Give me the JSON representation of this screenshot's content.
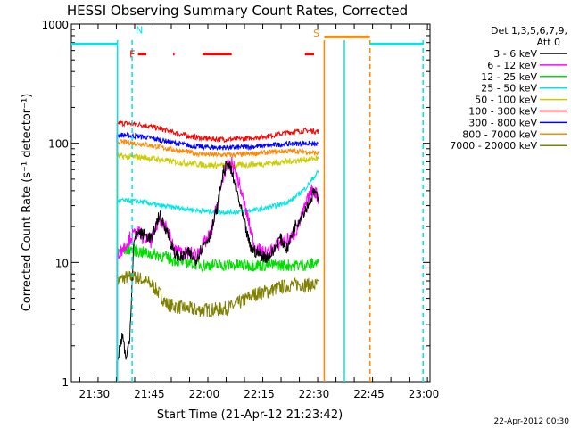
{
  "chart_data": {
    "type": "line",
    "title": "HESSI Observing Summary Count Rates, Corrected",
    "xlabel": "Start Time (21-Apr-12 21:23:42)",
    "ylabel": "Corrected Count Rate (s⁻¹ detector⁻¹)",
    "x_unit": "minutes after 21:23:42",
    "xlim": [
      0,
      98
    ],
    "ylim": [
      1,
      1000
    ],
    "yscale": "log",
    "x_tick_labels": [
      {
        "label": "21:30",
        "x": 6.3
      },
      {
        "label": "21:45",
        "x": 21.3
      },
      {
        "label": "22:00",
        "x": 36.3
      },
      {
        "label": "22:15",
        "x": 51.3
      },
      {
        "label": "22:30",
        "x": 66.3
      },
      {
        "label": "22:45",
        "x": 81.3
      },
      {
        "label": "23:00",
        "x": 96.3
      }
    ],
    "y_tick_labels": [
      {
        "label": "1",
        "y": 1
      },
      {
        "label": "10",
        "y": 10
      },
      {
        "label": "100",
        "y": 100
      },
      {
        "label": "1000",
        "y": 1000
      }
    ],
    "legend": {
      "placement": "right",
      "title_line1": "Det 1,3,5,6,7,9,",
      "title_line2": "Att 0",
      "entries": [
        {
          "name": "3 - 6 keV",
          "color": "#000000"
        },
        {
          "name": "6 - 12 keV",
          "color": "#ff00ff"
        },
        {
          "name": "12 - 25 keV",
          "color": "#00dd00"
        },
        {
          "name": "25 - 50 keV",
          "color": "#00e5e5"
        },
        {
          "name": "50 - 100 keV",
          "color": "#cccc00"
        },
        {
          "name": "100 - 300 keV",
          "color": "#ff0000"
        },
        {
          "name": "300 - 800 keV",
          "color": "#0000ff"
        },
        {
          "name": "800 - 7000 keV",
          "color": "#ff8800"
        },
        {
          "name": "7000 - 20000 keV",
          "color": "#808000"
        }
      ]
    },
    "series": [
      {
        "name": "3 - 6 keV",
        "color": "#000000",
        "x": [
          12.5,
          14.0,
          15.0,
          16.0,
          17.0,
          18.0,
          20,
          22,
          24,
          26,
          28,
          30,
          32,
          34,
          36,
          38,
          40,
          41.5,
          43,
          45,
          47,
          49,
          51,
          53,
          55,
          57,
          59,
          61,
          63,
          65,
          66.5,
          67.5
        ],
        "y": [
          1.5,
          2.5,
          1.5,
          2.5,
          14,
          18,
          17,
          16,
          25,
          19,
          12,
          11,
          12,
          10.5,
          14,
          17,
          30,
          58,
          68,
          42,
          23,
          13,
          12,
          11,
          12,
          16,
          13,
          20,
          25,
          32,
          40,
          32
        ]
      },
      {
        "name": "6 - 12 keV",
        "color": "#ff00ff",
        "x": [
          12.5,
          14,
          16,
          18,
          20,
          22,
          24,
          26,
          28,
          30,
          32,
          34,
          36,
          38,
          40,
          42,
          44,
          46,
          48,
          50,
          52,
          54,
          56,
          58,
          60,
          62,
          64,
          66,
          67.5
        ],
        "y": [
          12,
          13,
          16,
          18,
          16,
          15,
          24,
          20,
          13,
          12,
          12,
          11.5,
          14,
          17,
          32,
          60,
          68,
          44,
          25,
          14,
          12,
          12,
          14,
          15,
          16,
          20,
          30,
          42,
          35
        ]
      },
      {
        "name": "12 - 25 keV",
        "color": "#00dd00",
        "x": [
          12.5,
          16,
          20,
          24,
          28,
          32,
          36,
          40,
          44,
          48,
          52,
          56,
          60,
          64,
          67.5
        ],
        "y": [
          12.5,
          13,
          12,
          11.5,
          10.5,
          10,
          9.5,
          9.5,
          9.5,
          9.5,
          9.5,
          9.5,
          9.5,
          9.5,
          10
        ]
      },
      {
        "name": "25 - 50 keV",
        "color": "#00e5e5",
        "x": [
          12.5,
          16,
          20,
          24,
          28,
          32,
          36,
          40,
          44,
          48,
          52,
          56,
          60,
          64,
          67.5
        ],
        "y": [
          33,
          33,
          32,
          30,
          29,
          28,
          27,
          26.5,
          26.5,
          27,
          28,
          30,
          33,
          42,
          58
        ]
      },
      {
        "name": "50 - 100 keV",
        "color": "#cccc00",
        "x": [
          12.5,
          16,
          20,
          24,
          28,
          32,
          36,
          40,
          44,
          48,
          52,
          56,
          60,
          64,
          67.5
        ],
        "y": [
          78,
          77,
          76,
          73,
          70,
          68,
          66,
          65,
          65,
          66,
          67,
          69,
          71,
          73,
          75
        ]
      },
      {
        "name": "100 - 300 keV",
        "color": "#ff0000",
        "x": [
          12.5,
          16,
          20,
          24,
          28,
          32,
          36,
          40,
          44,
          48,
          52,
          56,
          60,
          64,
          67.5
        ],
        "y": [
          148,
          146,
          142,
          133,
          123,
          115,
          110,
          108,
          108,
          110,
          113,
          118,
          124,
          128,
          126
        ]
      },
      {
        "name": "300 - 800 keV",
        "color": "#0000ff",
        "x": [
          12.5,
          16,
          20,
          24,
          28,
          32,
          36,
          40,
          44,
          48,
          52,
          56,
          60,
          64,
          67.5
        ],
        "y": [
          118,
          116,
          113,
          107,
          101,
          96,
          93,
          92,
          92,
          93,
          95,
          97,
          99,
          100,
          97
        ]
      },
      {
        "name": "800 - 7000 keV",
        "color": "#ff8800",
        "x": [
          12.5,
          16,
          20,
          24,
          28,
          32,
          36,
          40,
          44,
          48,
          52,
          56,
          60,
          64,
          67.5
        ],
        "y": [
          103,
          101,
          98,
          93,
          88,
          84,
          81,
          80,
          80,
          81,
          83,
          85,
          86,
          85,
          82
        ]
      },
      {
        "name": "7000 - 20000 keV",
        "color": "#808000",
        "x": [
          12.5,
          15,
          18,
          20,
          22,
          24,
          26,
          28,
          30,
          34,
          38,
          42,
          44,
          46,
          48,
          50,
          54,
          58,
          62,
          66,
          67.5
        ],
        "y": [
          7,
          7.5,
          7.5,
          7,
          6.5,
          5.5,
          4.5,
          4.3,
          4.2,
          4.0,
          4.0,
          4.1,
          4.3,
          4.6,
          5.0,
          5.4,
          5.8,
          6.3,
          6.6,
          6.4,
          6.5
        ]
      }
    ],
    "annotations": [
      {
        "label": "N",
        "x": 16.6,
        "color": "#00e5e5"
      },
      {
        "label": "F",
        "x": 16.6,
        "color": "#ff0000"
      },
      {
        "label": "S",
        "x": 69,
        "color": "#ff8800"
      }
    ],
    "flare_flag_segments": [
      [
        18.2,
        20.5
      ],
      [
        27.8,
        28.2
      ],
      [
        35.8,
        43.8
      ],
      [
        63.8,
        66.3
      ]
    ],
    "saa_flag_segment": [
      69.1,
      81.6
    ],
    "night_flag_segments": [
      [
        0,
        12.6
      ],
      [
        81.6,
        96.1
      ]
    ],
    "flag_level": 680,
    "vertical_markers": [
      {
        "x": 12.6,
        "color": "#00e5e5",
        "style": "solid"
      },
      {
        "x": 16.6,
        "color": "#00e5e5",
        "style": "dashed"
      },
      {
        "x": 69.1,
        "color": "#ff8800",
        "style": "solid"
      },
      {
        "x": 74.6,
        "color": "#00e5e5",
        "style": "solid"
      },
      {
        "x": 81.6,
        "color": "#ff8800",
        "style": "dashed"
      },
      {
        "x": 96.1,
        "color": "#00e5e5",
        "style": "dashed"
      }
    ]
  },
  "footer": {
    "timestamp": "22-Apr-2012 00:30"
  }
}
